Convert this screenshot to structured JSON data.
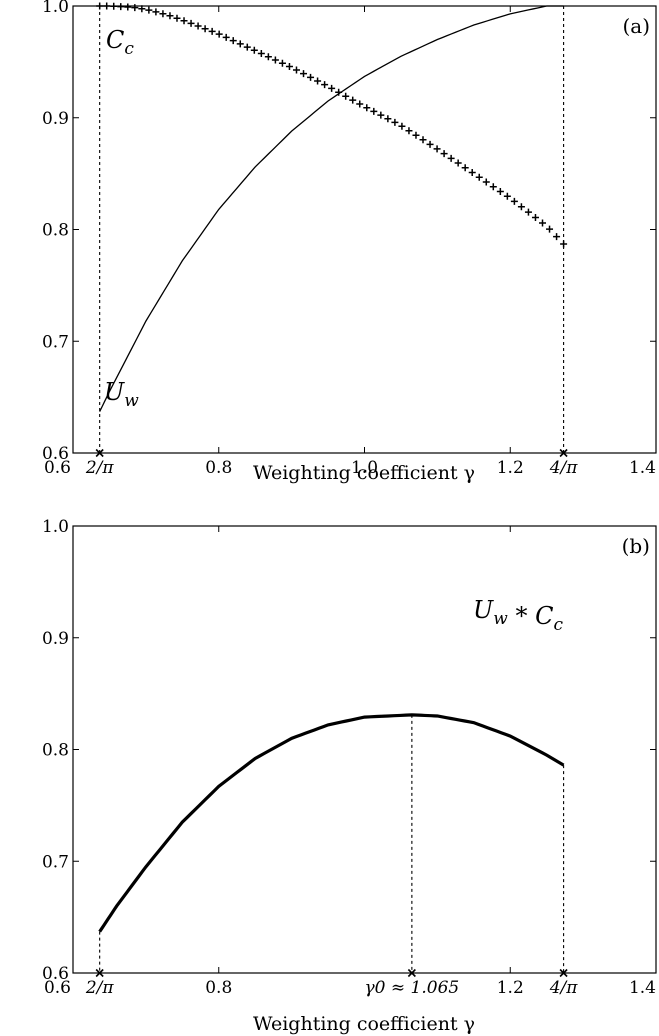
{
  "chart_data": [
    {
      "type": "line",
      "panel_label": "(a)",
      "xlabel": "Weighting coefficient γ",
      "xlim": [
        0.6,
        1.4
      ],
      "ylim": [
        0.6,
        1.0
      ],
      "xticks": [
        {
          "value": 0.6,
          "label": "0.6"
        },
        {
          "value": 0.6366,
          "label": "2/π"
        },
        {
          "value": 0.8,
          "label": "0.8"
        },
        {
          "value": 1.0,
          "label": "1.0"
        },
        {
          "value": 1.2,
          "label": "1.2"
        },
        {
          "value": 1.2732,
          "label": "4/π"
        },
        {
          "value": 1.4,
          "label": "1.4"
        }
      ],
      "yticks": [
        {
          "value": 0.6,
          "label": "0.6"
        },
        {
          "value": 0.7,
          "label": "0.7"
        },
        {
          "value": 0.8,
          "label": "0.8"
        },
        {
          "value": 0.9,
          "label": "0.9"
        },
        {
          "value": 1.0,
          "label": "1.0"
        }
      ],
      "vlines": [
        0.6366,
        1.2732
      ],
      "series": [
        {
          "name": "C_c",
          "label_text": "Cc",
          "marker": "plus",
          "points": [
            [
              0.6366,
              1.0
            ],
            [
              0.65,
              1.0
            ],
            [
              0.68,
              0.999
            ],
            [
              0.7,
              0.997
            ],
            [
              0.73,
              0.992
            ],
            [
              0.76,
              0.985
            ],
            [
              0.8,
              0.975
            ],
            [
              0.85,
              0.96
            ],
            [
              0.9,
              0.945
            ],
            [
              0.95,
              0.928
            ],
            [
              1.0,
              0.91
            ],
            [
              1.05,
              0.893
            ],
            [
              1.1,
              0.872
            ],
            [
              1.15,
              0.85
            ],
            [
              1.2,
              0.828
            ],
            [
              1.25,
              0.803
            ],
            [
              1.2732,
              0.787
            ]
          ]
        },
        {
          "name": "U_w",
          "label_text": "Uw",
          "marker": "none",
          "points": [
            [
              0.6366,
              0.637
            ],
            [
              0.65,
              0.655
            ],
            [
              0.7,
              0.718
            ],
            [
              0.75,
              0.772
            ],
            [
              0.8,
              0.818
            ],
            [
              0.85,
              0.856
            ],
            [
              0.9,
              0.888
            ],
            [
              0.95,
              0.915
            ],
            [
              1.0,
              0.937
            ],
            [
              1.05,
              0.955
            ],
            [
              1.1,
              0.97
            ],
            [
              1.15,
              0.983
            ],
            [
              1.2,
              0.993
            ],
            [
              1.25,
              1.0
            ],
            [
              1.2732,
              1.0
            ]
          ]
        }
      ]
    },
    {
      "type": "line",
      "panel_label": "(b)",
      "xlabel": "Weighting coefficient γ",
      "xlim": [
        0.6,
        1.4
      ],
      "ylim": [
        0.6,
        1.0
      ],
      "xticks": [
        {
          "value": 0.6,
          "label": "0.6"
        },
        {
          "value": 0.6366,
          "label": "2/π"
        },
        {
          "value": 0.8,
          "label": "0.8"
        },
        {
          "value": 1.065,
          "label": "γ0 ≈ 1.065"
        },
        {
          "value": 1.2,
          "label": "1.2"
        },
        {
          "value": 1.2732,
          "label": "4/π"
        },
        {
          "value": 1.4,
          "label": "1.4"
        }
      ],
      "yticks": [
        {
          "value": 0.6,
          "label": "0.6"
        },
        {
          "value": 0.7,
          "label": "0.7"
        },
        {
          "value": 0.8,
          "label": "0.8"
        },
        {
          "value": 0.9,
          "label": "0.9"
        },
        {
          "value": 1.0,
          "label": "1.0"
        }
      ],
      "vlines": [
        0.6366,
        1.065,
        1.2732
      ],
      "series": [
        {
          "name": "U_w * C_c",
          "label_text": "Uw * Cc",
          "marker": "none",
          "points": [
            [
              0.6366,
              0.637
            ],
            [
              0.66,
              0.66
            ],
            [
              0.7,
              0.695
            ],
            [
              0.75,
              0.735
            ],
            [
              0.8,
              0.767
            ],
            [
              0.85,
              0.792
            ],
            [
              0.9,
              0.81
            ],
            [
              0.95,
              0.822
            ],
            [
              1.0,
              0.829
            ],
            [
              1.065,
              0.831
            ],
            [
              1.1,
              0.83
            ],
            [
              1.15,
              0.824
            ],
            [
              1.2,
              0.812
            ],
            [
              1.25,
              0.795
            ],
            [
              1.2732,
              0.786
            ]
          ]
        }
      ]
    }
  ]
}
